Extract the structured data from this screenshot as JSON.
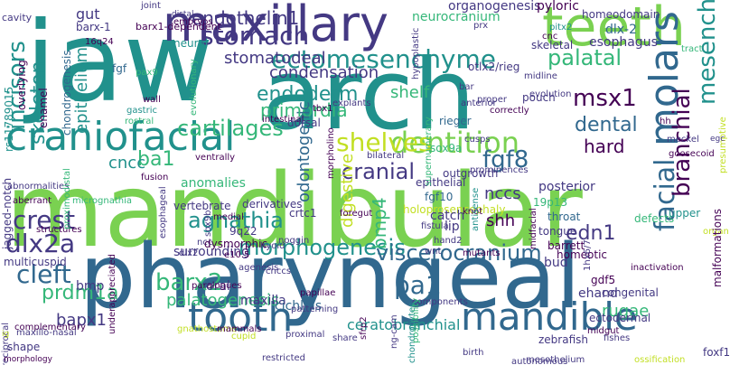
{
  "colors": {
    "lime": "#7ad151",
    "green": "#35b779",
    "teal": "#21918c",
    "blue": "#31688e",
    "indigo": "#443983",
    "purple": "#440154",
    "yellow": "#c2df23",
    "bright": "#fde725"
  },
  "words": [
    {
      "text": "jaw"
    },
    {
      "text": "arch"
    },
    {
      "text": "mandibular"
    },
    {
      "text": "pharyngeal"
    },
    {
      "text": "maxillary"
    },
    {
      "text": "teeth"
    },
    {
      "text": "craniofacial"
    },
    {
      "text": "tooth"
    },
    {
      "text": "mandible"
    },
    {
      "text": "molars"
    },
    {
      "text": "dentition"
    },
    {
      "text": "ectomesenchyme"
    },
    {
      "text": "stomach"
    },
    {
      "text": "endothelin1"
    },
    {
      "text": "stomatodeal"
    },
    {
      "text": "palatal"
    },
    {
      "text": "incisors"
    },
    {
      "text": "skeleton"
    },
    {
      "text": "endoderm"
    },
    {
      "text": "primordia"
    },
    {
      "text": "cartilages"
    },
    {
      "text": "shelves"
    },
    {
      "text": "msx1"
    },
    {
      "text": "mesenchyme"
    },
    {
      "text": "facial"
    },
    {
      "text": "fgf8"
    },
    {
      "text": "branchial"
    },
    {
      "text": "cranial"
    },
    {
      "text": "dental"
    },
    {
      "text": "hard"
    },
    {
      "text": "crest"
    },
    {
      "text": "dlx2a"
    },
    {
      "text": "cleft"
    },
    {
      "text": "agnathia"
    },
    {
      "text": "morphogenesis"
    },
    {
      "text": "viscerocranium"
    },
    {
      "text": "edn1"
    },
    {
      "text": "barx2"
    },
    {
      "text": "pa1"
    },
    {
      "text": "ba1"
    },
    {
      "text": "cncc"
    },
    {
      "text": "condensation"
    },
    {
      "text": "shelf"
    },
    {
      "text": "otlx2/rieg"
    },
    {
      "text": "odontogenic"
    },
    {
      "text": "bmp4"
    },
    {
      "text": "digestive"
    },
    {
      "text": "nccs"
    },
    {
      "text": "shh"
    },
    {
      "text": "prdm1a"
    },
    {
      "text": "palatogenesis"
    },
    {
      "text": "ceratobranchial"
    },
    {
      "text": "bapx1"
    },
    {
      "text": "rugae"
    },
    {
      "text": "epithelium"
    },
    {
      "text": "gut"
    },
    {
      "text": "barx-1"
    },
    {
      "text": "barx1-dependent"
    },
    {
      "text": "organogenesis"
    },
    {
      "text": "pyloric"
    },
    {
      "text": "homeodomain"
    },
    {
      "text": "neurocranium"
    },
    {
      "text": "dlx-2"
    },
    {
      "text": "esophagus"
    },
    {
      "text": "cavity"
    },
    {
      "text": "embryos"
    },
    {
      "text": "distal"
    },
    {
      "text": "joint"
    },
    {
      "text": "16q24"
    },
    {
      "text": "fgf"
    },
    {
      "text": "neural"
    },
    {
      "text": "skeletal"
    },
    {
      "text": "cnc"
    },
    {
      "text": "pitx2"
    },
    {
      "text": "tract"
    },
    {
      "text": "overlying"
    },
    {
      "text": "enamel"
    },
    {
      "text": "chondrogenesis"
    },
    {
      "text": "rs11789015"
    },
    {
      "text": "gastric"
    },
    {
      "text": "rostral"
    },
    {
      "text": "pax9"
    },
    {
      "text": "wall"
    },
    {
      "text": "evolutionary"
    },
    {
      "text": "tbx1"
    },
    {
      "text": "explants"
    },
    {
      "text": "intestinal"
    },
    {
      "text": "dorsal"
    },
    {
      "text": "anomalies"
    },
    {
      "text": "abnormalities"
    },
    {
      "text": "fusion"
    },
    {
      "text": "ventrally"
    },
    {
      "text": "morpholino"
    },
    {
      "text": "bilateral"
    },
    {
      "text": "sox9a"
    },
    {
      "text": "cusps"
    },
    {
      "text": "outgrowth"
    },
    {
      "text": "epithelial"
    },
    {
      "text": "fgf10"
    },
    {
      "text": "aberrant"
    },
    {
      "text": "micrognathia"
    },
    {
      "text": "vertebrate"
    },
    {
      "text": "derivatives"
    },
    {
      "text": "foregut"
    },
    {
      "text": "holoprosencephaly"
    },
    {
      "text": "knot"
    },
    {
      "text": "19p13"
    },
    {
      "text": "throat"
    },
    {
      "text": "tongue"
    },
    {
      "text": "defects"
    },
    {
      "text": "upper"
    },
    {
      "text": "posterior"
    },
    {
      "text": "catch"
    },
    {
      "text": "lip"
    },
    {
      "text": "structures"
    },
    {
      "text": "proximodistal"
    },
    {
      "text": "crtc1"
    },
    {
      "text": "noggin"
    },
    {
      "text": "hyoid"
    },
    {
      "text": "fistula"
    },
    {
      "text": "hand2"
    },
    {
      "text": "wnt"
    },
    {
      "text": "mutants"
    },
    {
      "text": "antisense"
    },
    {
      "text": "midfacial"
    },
    {
      "text": "barrett"
    },
    {
      "text": "organ"
    },
    {
      "text": "sox9b"
    },
    {
      "text": "9q22"
    },
    {
      "text": "medial"
    },
    {
      "text": "surrounding"
    },
    {
      "text": "esophageal"
    },
    {
      "text": "jagged-notch"
    },
    {
      "text": "ncc"
    },
    {
      "text": "dlx2"
    },
    {
      "text": "e10.5"
    },
    {
      "text": "dysmorphic"
    },
    {
      "text": "multicuspid"
    },
    {
      "text": "agenesis"
    },
    {
      "text": "cnccs"
    },
    {
      "text": "bud"
    },
    {
      "text": "gdf5"
    },
    {
      "text": "inactivation"
    },
    {
      "text": "homeotic"
    },
    {
      "text": "ehand"
    },
    {
      "text": "congenital"
    },
    {
      "text": "1hx6/7"
    },
    {
      "text": "malformations"
    },
    {
      "text": "bmp"
    },
    {
      "text": "oral"
    },
    {
      "text": "maxilla"
    },
    {
      "text": "paralogues"
    },
    {
      "text": "papillae"
    },
    {
      "text": "components"
    },
    {
      "text": "cichlids"
    },
    {
      "text": "complementary"
    },
    {
      "text": "ectodermal"
    },
    {
      "text": "fishes"
    },
    {
      "text": "midgut"
    },
    {
      "text": "shape"
    },
    {
      "text": "maxillo-nasal"
    },
    {
      "text": "reciprocal"
    },
    {
      "text": "morphology"
    },
    {
      "text": "underappreciated"
    },
    {
      "text": "gnathostome"
    },
    {
      "text": "mammals"
    },
    {
      "text": "patterning"
    },
    {
      "text": "proximal"
    },
    {
      "text": "cupid"
    },
    {
      "text": "restricted"
    },
    {
      "text": "birth"
    },
    {
      "text": "mesothelium"
    },
    {
      "text": "autonomous"
    },
    {
      "text": "ossification"
    },
    {
      "text": "foxf1"
    },
    {
      "text": "zebrafish"
    },
    {
      "text": "chondrocytes"
    },
    {
      "text": "sfrp2"
    },
    {
      "text": "ng-cam"
    },
    {
      "text": "possibility"
    },
    {
      "text": "share"
    },
    {
      "text": "hypoplastic"
    },
    {
      "text": "anterior"
    },
    {
      "text": "proper"
    },
    {
      "text": "correctly"
    },
    {
      "text": "midline"
    },
    {
      "text": "pouch"
    },
    {
      "text": "rieger"
    },
    {
      "text": "bar"
    },
    {
      "text": "evolution"
    },
    {
      "text": "hh"
    },
    {
      "text": "meckel"
    },
    {
      "text": "goosecoid"
    },
    {
      "text": "presumptive"
    },
    {
      "text": "prominences"
    },
    {
      "text": "supernumerary"
    },
    {
      "text": "prx"
    },
    {
      "text": "ig"
    },
    {
      "text": "egc"
    }
  ]
}
